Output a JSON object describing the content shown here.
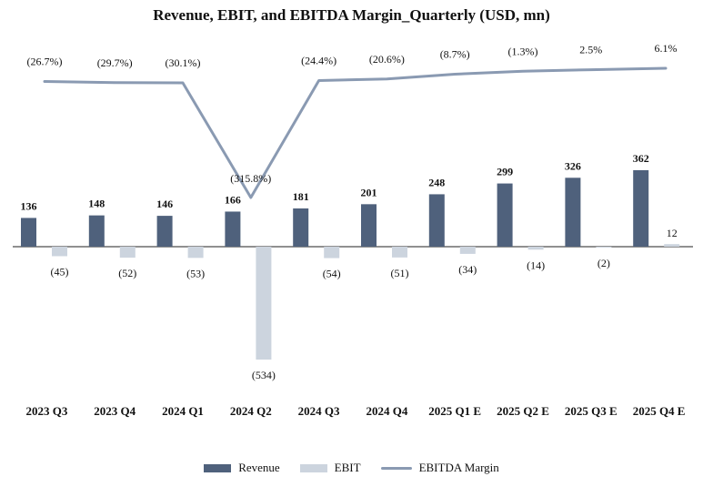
{
  "chart_data": {
    "type": "bar",
    "title": "Revenue, EBIT, and EBITDA Margin_Quarterly (USD, mn)",
    "categories": [
      "2023 Q3",
      "2023 Q4",
      "2024 Q1",
      "2024 Q2",
      "2024 Q3",
      "2024 Q4",
      "2025 Q1 E",
      "2025 Q2 E",
      "2025 Q3 E",
      "2025 Q4 E"
    ],
    "series": [
      {
        "name": "Revenue",
        "kind": "bar",
        "color": "#4f617c",
        "values": [
          136,
          148,
          146,
          166,
          181,
          201,
          248,
          299,
          326,
          362
        ],
        "labels": [
          "136",
          "148",
          "146",
          "166",
          "181",
          "201",
          "248",
          "299",
          "326",
          "362"
        ]
      },
      {
        "name": "EBIT",
        "kind": "bar",
        "color": "#ccd4de",
        "values": [
          -45,
          -52,
          -53,
          -534,
          -54,
          -51,
          -34,
          -14,
          -2,
          12
        ],
        "labels": [
          "(45)",
          "(52)",
          "(53)",
          "(534)",
          "(54)",
          "(51)",
          "(34)",
          "(14)",
          "(2)",
          "12"
        ]
      },
      {
        "name": "EBITDA Margin",
        "kind": "line",
        "axis": "secondary",
        "color": "#8a9ab2",
        "values": [
          -26.7,
          -29.7,
          -30.1,
          -315.8,
          -24.4,
          -20.6,
          -8.7,
          -1.3,
          2.5,
          6.1
        ],
        "labels": [
          "(26.7%)",
          "(29.7%)",
          "(30.1%)",
          "(315.8%)",
          "(24.4%)",
          "(20.6%)",
          "(8.7%)",
          "(1.3%)",
          "2.5%",
          "6.1%"
        ]
      }
    ],
    "grid": false,
    "legend_position": "bottom-center"
  }
}
